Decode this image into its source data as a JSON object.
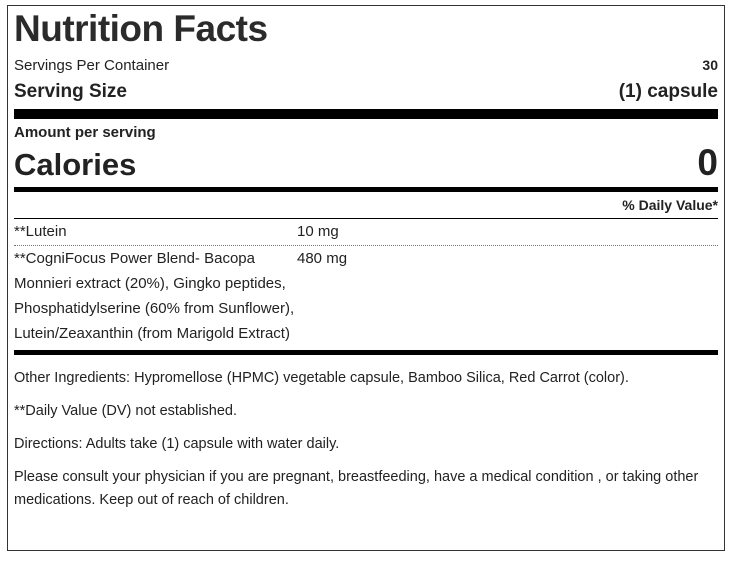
{
  "title": "Nutrition Facts",
  "servings_per_container": {
    "label": "Servings Per Container",
    "value": "30"
  },
  "serving_size": {
    "label": "Serving Size",
    "value": "(1) capsule"
  },
  "amount_per_serving": "Amount per serving",
  "calories": {
    "label": "Calories",
    "value": "0"
  },
  "daily_value_header": "% Daily Value*",
  "nutrients": [
    {
      "name": "**Lutein",
      "amount": "10 mg"
    },
    {
      "name": "**CogniFocus Power Blend- Bacopa Monnieri extract (20%), Gingko peptides, Phosphatidylserine (60% from Sunflower), Lutein/Zeaxanthin (from Marigold Extract)",
      "amount": "480 mg"
    }
  ],
  "other_ingredients": "Other Ingredients: Hypromellose (HPMC) vegetable capsule, Bamboo Silica, Red Carrot (color).",
  "dv_note": "**Daily Value (DV) not established.",
  "directions": "Directions: Adults take (1) capsule with water daily.",
  "warning": "Please consult your physician if you are pregnant, breastfeeding, have a medical condition , or taking other medications. Keep out of reach of children."
}
